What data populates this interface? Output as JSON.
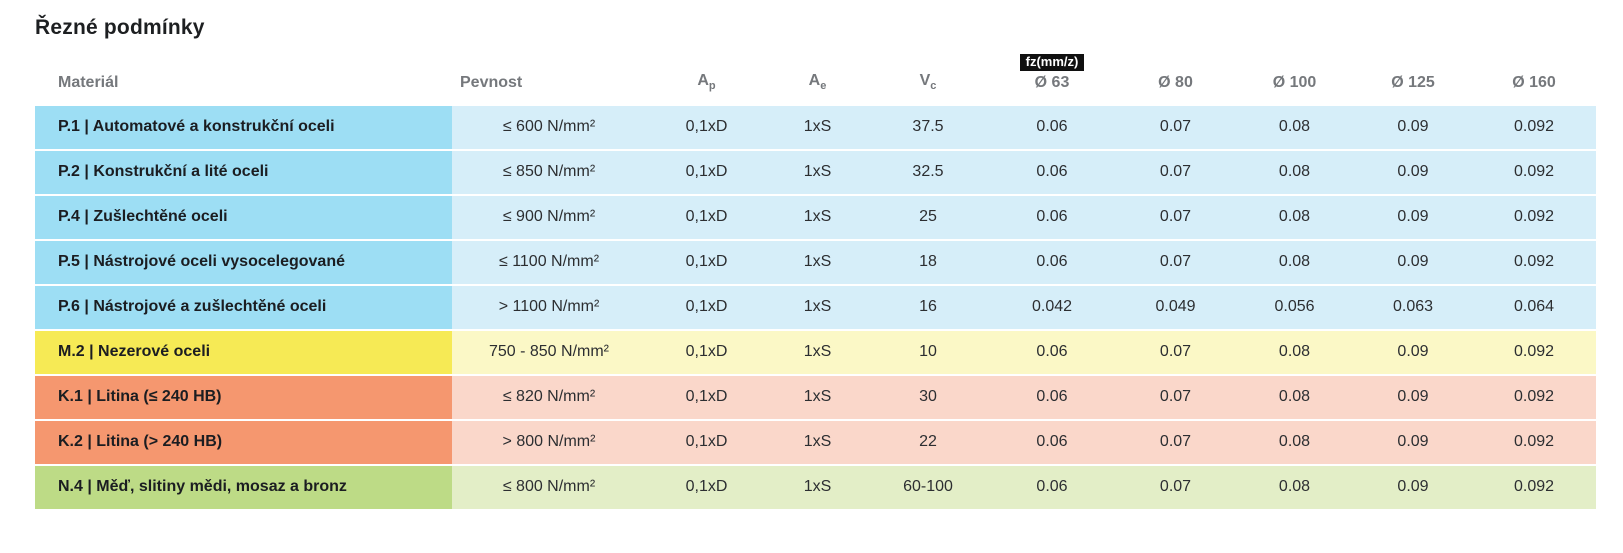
{
  "title": "Řezné podmínky",
  "table": {
    "headers": {
      "material": "Materiál",
      "pevnost": "Pevnost",
      "ap_base": "A",
      "ap_sub": "p",
      "ae_base": "A",
      "ae_sub": "e",
      "vc_base": "V",
      "vc_sub": "c",
      "fz_badge": "fz(mm/z)",
      "d63": "Ø 63",
      "d80": "Ø 80",
      "d100": "Ø 100",
      "d125": "Ø 125",
      "d160": "Ø 160"
    },
    "rows": [
      {
        "material": "P.1 | Automatové a konstrukční oceli",
        "pevnost": "≤ 600 N/mm²",
        "ap": "0,1xD",
        "ae": "1xS",
        "vc": "37.5",
        "fz": [
          "0.06",
          "0.07",
          "0.08",
          "0.09",
          "0.092"
        ],
        "color_dark": "#9DDEF4",
        "color_light": "#D6EEF9"
      },
      {
        "material": "P.2 | Konstrukční a lité oceli",
        "pevnost": "≤ 850 N/mm²",
        "ap": "0,1xD",
        "ae": "1xS",
        "vc": "32.5",
        "fz": [
          "0.06",
          "0.07",
          "0.08",
          "0.09",
          "0.092"
        ],
        "color_dark": "#9DDEF4",
        "color_light": "#D6EEF9"
      },
      {
        "material": "P.4 | Zušlechtěné oceli",
        "pevnost": "≤ 900 N/mm²",
        "ap": "0,1xD",
        "ae": "1xS",
        "vc": "25",
        "fz": [
          "0.06",
          "0.07",
          "0.08",
          "0.09",
          "0.092"
        ],
        "color_dark": "#9DDEF4",
        "color_light": "#D6EEF9"
      },
      {
        "material": "P.5 | Nástrojové oceli vysocelegované",
        "pevnost": "≤ 1100 N/mm²",
        "ap": "0,1xD",
        "ae": "1xS",
        "vc": "18",
        "fz": [
          "0.06",
          "0.07",
          "0.08",
          "0.09",
          "0.092"
        ],
        "color_dark": "#9DDEF4",
        "color_light": "#D6EEF9"
      },
      {
        "material": "P.6 | Nástrojové a zušlechtěné oceli",
        "pevnost": "> 1100 N/mm²",
        "ap": "0,1xD",
        "ae": "1xS",
        "vc": "16",
        "fz": [
          "0.042",
          "0.049",
          "0.056",
          "0.063",
          "0.064"
        ],
        "color_dark": "#9DDEF4",
        "color_light": "#D6EEF9"
      },
      {
        "material": "M.2 | Nezerové oceli",
        "pevnost": "750 - 850 N/mm²",
        "ap": "0,1xD",
        "ae": "1xS",
        "vc": "10",
        "fz": [
          "0.06",
          "0.07",
          "0.08",
          "0.09",
          "0.092"
        ],
        "color_dark": "#F6EA55",
        "color_light": "#FBF8C6"
      },
      {
        "material": "K.1 | Litina (≤ 240 HB)",
        "pevnost": "≤ 820 N/mm²",
        "ap": "0,1xD",
        "ae": "1xS",
        "vc": "30",
        "fz": [
          "0.06",
          "0.07",
          "0.08",
          "0.09",
          "0.092"
        ],
        "color_dark": "#F5976F",
        "color_light": "#FAD7CA"
      },
      {
        "material": "K.2 | Litina (> 240 HB)",
        "pevnost": "> 800 N/mm²",
        "ap": "0,1xD",
        "ae": "1xS",
        "vc": "22",
        "fz": [
          "0.06",
          "0.07",
          "0.08",
          "0.09",
          "0.092"
        ],
        "color_dark": "#F5976F",
        "color_light": "#FAD7CA"
      },
      {
        "material": "N.4 | Měď, slitiny mědi, mosaz a bronz",
        "pevnost": "≤ 800 N/mm²",
        "ap": "0,1xD",
        "ae": "1xS",
        "vc": "60-100",
        "fz": [
          "0.06",
          "0.07",
          "0.08",
          "0.09",
          "0.092"
        ],
        "color_dark": "#BDDB86",
        "color_light": "#E3EEC7"
      }
    ]
  },
  "colors": {
    "title_text": "#1d1f21",
    "header_text": "#75787c",
    "material_text": "#1b1d21",
    "value_text": "#2c2e31",
    "badge_bg": "#101010",
    "badge_text": "#ffffff",
    "blue_dark": "#9DDEF4",
    "blue_light": "#D6EEF9",
    "yellow_dark": "#F6EA55",
    "yellow_light": "#FBF8C6",
    "salmon_dark": "#F5976F",
    "salmon_light": "#FAD7CA",
    "green_dark": "#BDDB86",
    "green_light": "#E3EEC7"
  },
  "chart_data": {
    "type": "table",
    "title": "Řezné podmínky",
    "columns": [
      "Materiál",
      "Pevnost",
      "Ap",
      "Ae",
      "Vc",
      "fz(mm/z) Ø 63",
      "fz(mm/z) Ø 80",
      "fz(mm/z) Ø 100",
      "fz(mm/z) Ø 125",
      "fz(mm/z) Ø 160"
    ],
    "rows": [
      [
        "P.1 | Automatové a konstrukční oceli",
        "≤ 600 N/mm²",
        "0,1xD",
        "1xS",
        "37.5",
        "0.06",
        "0.07",
        "0.08",
        "0.09",
        "0.092"
      ],
      [
        "P.2 | Konstrukční a lité oceli",
        "≤ 850 N/mm²",
        "0,1xD",
        "1xS",
        "32.5",
        "0.06",
        "0.07",
        "0.08",
        "0.09",
        "0.092"
      ],
      [
        "P.4 | Zušlechtěné oceli",
        "≤ 900 N/mm²",
        "0,1xD",
        "1xS",
        "25",
        "0.06",
        "0.07",
        "0.08",
        "0.09",
        "0.092"
      ],
      [
        "P.5 | Nástrojové oceli vysocelegované",
        "≤ 1100 N/mm²",
        "0,1xD",
        "1xS",
        "18",
        "0.06",
        "0.07",
        "0.08",
        "0.09",
        "0.092"
      ],
      [
        "P.6 | Nástrojové a zušlechtěné oceli",
        "> 1100 N/mm²",
        "0,1xD",
        "1xS",
        "16",
        "0.042",
        "0.049",
        "0.056",
        "0.063",
        "0.064"
      ],
      [
        "M.2 | Nezerové oceli",
        "750 - 850 N/mm²",
        "0,1xD",
        "1xS",
        "10",
        "0.06",
        "0.07",
        "0.08",
        "0.09",
        "0.092"
      ],
      [
        "K.1 | Litina (≤ 240 HB)",
        "≤ 820 N/mm²",
        "0,1xD",
        "1xS",
        "30",
        "0.06",
        "0.07",
        "0.08",
        "0.09",
        "0.092"
      ],
      [
        "K.2 | Litina (> 240 HB)",
        "> 800 N/mm²",
        "0,1xD",
        "1xS",
        "22",
        "0.06",
        "0.07",
        "0.08",
        "0.09",
        "0.092"
      ],
      [
        "N.4 | Měď, slitiny mědi, mosaz a bronz",
        "≤ 800 N/mm²",
        "0,1xD",
        "1xS",
        "60-100",
        "0.06",
        "0.07",
        "0.08",
        "0.09",
        "0.092"
      ]
    ]
  }
}
